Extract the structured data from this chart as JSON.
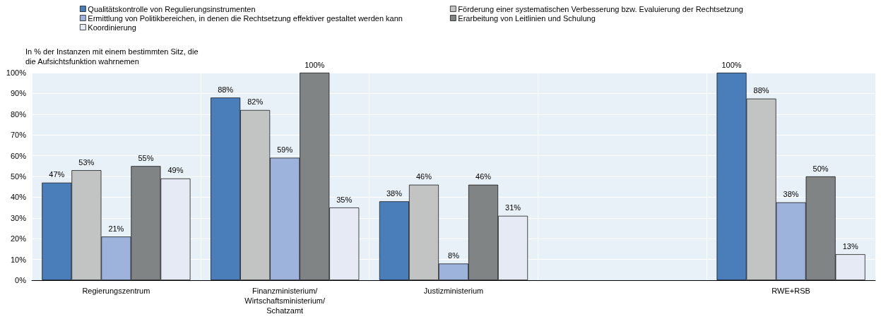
{
  "chart_data": {
    "type": "bar",
    "ylabel": "In % der Instanzen mit einem bestimmten Sitz, die die Aufsichtsfunktion wahrnemen",
    "categories": [
      "Regierungszentrum",
      "Finanzministerium/Wirtschaftsministerium/Schatzamt",
      "Justizministerium",
      null,
      "RWE+RSB"
    ],
    "series": [
      {
        "name": "Qualitätskontrolle von Regulierungsinstrumenten",
        "color": "#4a7ebb",
        "values": [
          47,
          88,
          38,
          null,
          100
        ],
        "value_labels": [
          "47%",
          "88%",
          "38%",
          null,
          "100%"
        ]
      },
      {
        "name": "Förderung einer systematischen Verbesserung bzw. Evaluierung der Rechtsetzung",
        "color": "#c2c4c3",
        "values": [
          53,
          82,
          46,
          null,
          87.5
        ],
        "value_labels": [
          "53%",
          "82%",
          "46%",
          null,
          "88%"
        ]
      },
      {
        "name": "Ermittlung von Politikbereichen, in denen die Rechtsetzung effektiver gestaltet werden kann",
        "color": "#9db3dc",
        "values": [
          21,
          59,
          8,
          null,
          37.5
        ],
        "value_labels": [
          "21%",
          "59%",
          "8%",
          null,
          "38%"
        ]
      },
      {
        "name": "Erarbeitung von Leitlinien und Schulung",
        "color": "#808485",
        "values": [
          55,
          100,
          46,
          null,
          50
        ],
        "value_labels": [
          "55%",
          "100%",
          "46%",
          null,
          "50%"
        ]
      },
      {
        "name": "Koordinierung",
        "color": "#e6eaf5",
        "values": [
          49,
          35,
          31,
          null,
          12.5
        ],
        "value_labels": [
          "49%",
          "35%",
          "31%",
          null,
          "13%"
        ]
      }
    ],
    "ylim": [
      0,
      100
    ],
    "yticks": [
      {
        "value": 0,
        "label": "0%"
      },
      {
        "value": 10,
        "label": "10%"
      },
      {
        "value": 20,
        "label": "20%"
      },
      {
        "value": 30,
        "label": "30%"
      },
      {
        "value": 40,
        "label": "40%"
      },
      {
        "value": 50,
        "label": "50%"
      },
      {
        "value": 60,
        "label": "60%"
      },
      {
        "value": 70,
        "label": "70%"
      },
      {
        "value": 80,
        "label": "80%"
      },
      {
        "value": 90,
        "label": "90%"
      },
      {
        "value": 100,
        "label": "100%"
      }
    ],
    "grid": true,
    "legend": "top"
  }
}
